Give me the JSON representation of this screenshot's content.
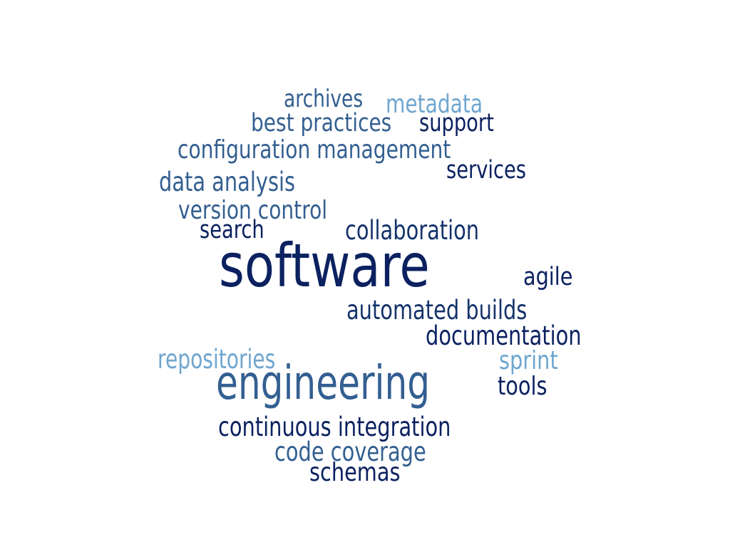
{
  "colors": {
    "dark_navy": "#0b2160",
    "navy": "#14336b",
    "steel_blue": "#335f91",
    "light_blue": "#6fa6cf"
  },
  "words": {
    "software": {
      "text": "software",
      "color": "#0b2160"
    },
    "engineering": {
      "text": "engineering",
      "color": "#335f91"
    },
    "archives": {
      "text": "archives",
      "color": "#335f91"
    },
    "metadata": {
      "text": "metadata",
      "color": "#6fa6cf"
    },
    "best_practices": {
      "text": "best practices",
      "color": "#335f91"
    },
    "support": {
      "text": "support",
      "color": "#0b2160"
    },
    "configuration_management": {
      "text": "configuration management",
      "color": "#335f91"
    },
    "services": {
      "text": "services",
      "color": "#0b2160"
    },
    "data_analysis": {
      "text": "data analysis",
      "color": "#335f91"
    },
    "version_control": {
      "text": "version control",
      "color": "#335f91"
    },
    "search": {
      "text": "search",
      "color": "#0b2160"
    },
    "collaboration": {
      "text": "collaboration",
      "color": "#14336b"
    },
    "agile": {
      "text": "agile",
      "color": "#0b2160"
    },
    "automated_builds": {
      "text": "automated builds",
      "color": "#14336b"
    },
    "documentation": {
      "text": "documentation",
      "color": "#0b2160"
    },
    "repositories": {
      "text": "repositories",
      "color": "#6fa6cf"
    },
    "sprint": {
      "text": "sprint",
      "color": "#6fa6cf"
    },
    "tools": {
      "text": "tools",
      "color": "#0b2160"
    },
    "continuous_integration": {
      "text": "continuous integration",
      "color": "#0b2160"
    },
    "code_coverage": {
      "text": "code coverage",
      "color": "#335f91"
    },
    "schemas": {
      "text": "schemas",
      "color": "#0b2160"
    }
  }
}
